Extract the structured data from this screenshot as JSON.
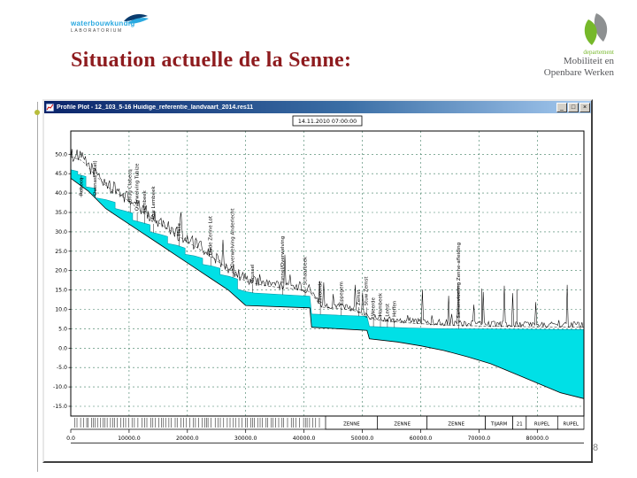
{
  "slide": {
    "title": "Situation actuelle de la Senne:",
    "page_number": "8",
    "logo_left": {
      "line1": "waterbouwkundig",
      "line2": "LABORATORIUM"
    },
    "logo_right": {
      "dept": "departement",
      "line1": "Mobiliteit en",
      "line2": "Openbare Werken"
    }
  },
  "window": {
    "title": "Profile Plot - 12_103_5-16 Huidige_referentie_landvaart_2014.res11",
    "buttons": {
      "minimize": "_",
      "maximize": "□",
      "close": "×"
    }
  },
  "colors": {
    "title_red": "#8e1b1e",
    "water_cyan": "#00e0e6",
    "logo_green": "#76b82a",
    "logo_blue": "#2aa9e0",
    "grid_green": "#3e7d62"
  },
  "chart_data": {
    "type": "area",
    "title": "14.11.2010 07:00:00",
    "xlabel": "",
    "ylabel": "",
    "xlim": [
      0,
      88000
    ],
    "ylim": [
      -17.5,
      56
    ],
    "grid": "dashed",
    "x_tick_values": [
      0,
      10000,
      20000,
      30000,
      40000,
      50000,
      60000,
      70000,
      80000
    ],
    "x_tick_labels": [
      "0.0",
      "10000.0",
      "20000.0",
      "30000.0",
      "40000.0",
      "50000.0",
      "60000.0",
      "70000.0",
      "80000.0"
    ],
    "y_tick_values": [
      50,
      45,
      40,
      35,
      30,
      25,
      20,
      15,
      10,
      5,
      0,
      -5,
      -10,
      -15
    ],
    "y_tick_labels": [
      "50.0",
      "45.0",
      "40.0",
      "35.0",
      "30.0",
      "25.0",
      "20.0",
      "15.0",
      "10.0",
      "5.0",
      "0.0",
      "-5.0",
      "-10.0",
      "-15.0"
    ],
    "series": [
      {
        "name": "water surface",
        "color": "#00e0e6",
        "points": [
          [
            0,
            46
          ],
          [
            1200,
            45.6
          ],
          [
            1200,
            44.8
          ],
          [
            2600,
            44.3
          ],
          [
            2600,
            41.6
          ],
          [
            4200,
            41.2
          ],
          [
            4200,
            38.8
          ],
          [
            6000,
            38.3
          ],
          [
            7600,
            37.6
          ],
          [
            7600,
            36.0
          ],
          [
            9200,
            35.4
          ],
          [
            10600,
            34.8
          ],
          [
            10600,
            33.0
          ],
          [
            12200,
            32.4
          ],
          [
            13600,
            31.8
          ],
          [
            13600,
            30.0
          ],
          [
            15200,
            29.4
          ],
          [
            16600,
            28.8
          ],
          [
            16600,
            27.0
          ],
          [
            18200,
            26.5
          ],
          [
            19600,
            25.8
          ],
          [
            19600,
            24.2
          ],
          [
            21200,
            23.8
          ],
          [
            22600,
            23.2
          ],
          [
            22600,
            21.6
          ],
          [
            24200,
            21.2
          ],
          [
            25600,
            20.6
          ],
          [
            25600,
            19.0
          ],
          [
            27200,
            18.5
          ],
          [
            28600,
            17.8
          ],
          [
            28600,
            15.2
          ],
          [
            30000,
            14.6
          ],
          [
            31500,
            14.2
          ],
          [
            41000,
            13.4
          ],
          [
            41300,
            8.8
          ],
          [
            50800,
            8.2
          ],
          [
            51200,
            5.6
          ],
          [
            58000,
            5.2
          ],
          [
            64000,
            5.0
          ],
          [
            88000,
            4.8
          ]
        ]
      },
      {
        "name": "river bed",
        "color": "#000000",
        "points": [
          [
            0,
            43.8
          ],
          [
            3000,
            40.5
          ],
          [
            6000,
            36.0
          ],
          [
            9000,
            33.0
          ],
          [
            12000,
            30.0
          ],
          [
            15000,
            27.0
          ],
          [
            18000,
            24.0
          ],
          [
            21000,
            21.0
          ],
          [
            24000,
            18.0
          ],
          [
            27000,
            15.0
          ],
          [
            30000,
            11.0
          ],
          [
            41000,
            10.4
          ],
          [
            41300,
            5.4
          ],
          [
            50800,
            4.6
          ],
          [
            51200,
            2.4
          ],
          [
            56000,
            1.6
          ],
          [
            60000,
            0.6
          ],
          [
            64000,
            -0.6
          ],
          [
            68000,
            -2.2
          ],
          [
            72000,
            -4.0
          ],
          [
            76000,
            -6.5
          ],
          [
            80000,
            -9.0
          ],
          [
            84000,
            -11.5
          ],
          [
            88000,
            -13.0
          ]
        ]
      },
      {
        "name": "bank level",
        "color": "#000000",
        "points": [
          [
            0,
            50
          ],
          [
            2000,
            49
          ],
          [
            4000,
            45.5
          ],
          [
            6000,
            42.5
          ],
          [
            8000,
            40.5
          ],
          [
            10000,
            38.5
          ],
          [
            12000,
            36
          ],
          [
            14000,
            34
          ],
          [
            16000,
            32
          ],
          [
            18000,
            30
          ],
          [
            20000,
            28
          ],
          [
            22000,
            26.2
          ],
          [
            24000,
            24.2
          ],
          [
            26000,
            22.2
          ],
          [
            28000,
            19.8
          ],
          [
            30000,
            17.8
          ],
          [
            33000,
            16.8
          ],
          [
            36000,
            16.2
          ],
          [
            39000,
            15.8
          ],
          [
            41000,
            15.2
          ],
          [
            43000,
            11.2
          ],
          [
            46000,
            10.8
          ],
          [
            49000,
            10.2
          ],
          [
            51000,
            8.2
          ],
          [
            54000,
            7.6
          ],
          [
            57000,
            7.2
          ],
          [
            60000,
            6.9
          ],
          [
            64000,
            6.6
          ],
          [
            68000,
            6.4
          ],
          [
            72000,
            6.3
          ],
          [
            76000,
            6.2
          ],
          [
            80000,
            6.1
          ],
          [
            84000,
            6.0
          ],
          [
            88000,
            6.0
          ]
        ]
      }
    ],
    "stations": [
      {
        "x": 1800,
        "label": "Rebecq"
      },
      {
        "x": 4200,
        "label": "Quenast (stat)"
      },
      {
        "x": 10200,
        "label": "Brug Clabecq"
      },
      {
        "x": 11400,
        "label": "Overwelving Tubize"
      },
      {
        "x": 12700,
        "label": "Lembeek"
      },
      {
        "x": 14200,
        "label": "Stuw Lembeek"
      },
      {
        "x": 18600,
        "label": "Halle"
      },
      {
        "x": 24000,
        "label": "Oude Zenne Lot"
      },
      {
        "x": 27800,
        "label": "Overwelving Anderlecht"
      },
      {
        "x": 31200,
        "label": "Brussel"
      },
      {
        "x": 36300,
        "label": "Tunnel/Overwelving"
      },
      {
        "x": 40200,
        "label": "Schaarbeek"
      },
      {
        "x": 42800,
        "label": "Vilvoorde"
      },
      {
        "x": 46400,
        "label": "Eppegem"
      },
      {
        "x": 49400,
        "label": "Zemst"
      },
      {
        "x": 50700,
        "label": "Stuw Zemst"
      },
      {
        "x": 51900,
        "label": "Weerde"
      },
      {
        "x": 53100,
        "label": "Hombeek"
      },
      {
        "x": 54300,
        "label": "Leest"
      },
      {
        "x": 55500,
        "label": "Heffen"
      },
      {
        "x": 66500,
        "label": "Samenvloeiing Zenne-afleiding"
      }
    ],
    "sections": [
      {
        "label": "ZENNE",
        "from": 43700,
        "to": 52600
      },
      {
        "label": "ZENNE",
        "from": 52600,
        "to": 61100
      },
      {
        "label": "ZENNE",
        "from": 61100,
        "to": 71100
      },
      {
        "label": "TIJARM",
        "from": 71100,
        "to": 75800
      },
      {
        "label": "21",
        "from": 75800,
        "to": 78100
      },
      {
        "label": "RUPEL",
        "from": 78100,
        "to": 83500
      },
      {
        "label": "RUPEL",
        "from": 83500,
        "to": 88000
      }
    ]
  }
}
